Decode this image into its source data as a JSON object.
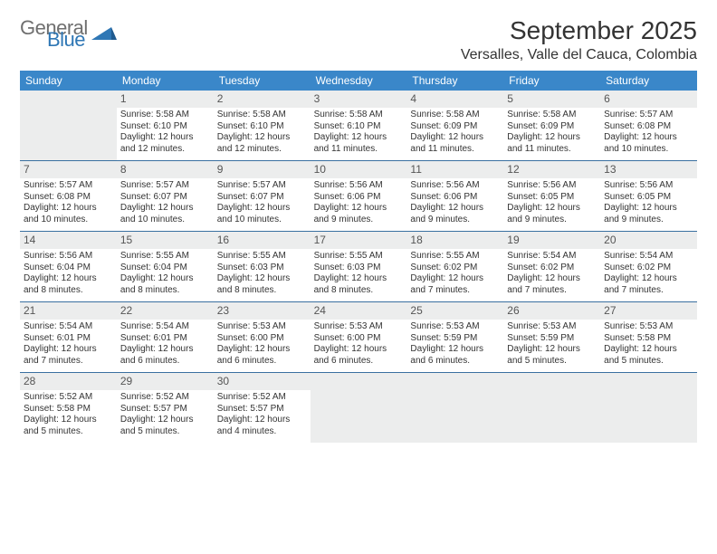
{
  "logo": {
    "word1": "General",
    "word2": "Blue",
    "word1_color": "#6f6f6f",
    "word2_color": "#2f77b5",
    "triangle_color": "#2f77b5"
  },
  "title": "September 2025",
  "location": "Versalles, Valle del Cauca, Colombia",
  "colors": {
    "header_bg": "#3a87c9",
    "header_text": "#ffffff",
    "daynum_bg": "#eceded",
    "week_divider": "#3a70a0",
    "text": "#333333"
  },
  "day_headers": [
    "Sunday",
    "Monday",
    "Tuesday",
    "Wednesday",
    "Thursday",
    "Friday",
    "Saturday"
  ],
  "weeks": [
    [
      {
        "day": "",
        "sunrise": "",
        "sunset": "",
        "daylight1": "",
        "daylight2": ""
      },
      {
        "day": "1",
        "sunrise": "Sunrise: 5:58 AM",
        "sunset": "Sunset: 6:10 PM",
        "daylight1": "Daylight: 12 hours",
        "daylight2": "and 12 minutes."
      },
      {
        "day": "2",
        "sunrise": "Sunrise: 5:58 AM",
        "sunset": "Sunset: 6:10 PM",
        "daylight1": "Daylight: 12 hours",
        "daylight2": "and 12 minutes."
      },
      {
        "day": "3",
        "sunrise": "Sunrise: 5:58 AM",
        "sunset": "Sunset: 6:10 PM",
        "daylight1": "Daylight: 12 hours",
        "daylight2": "and 11 minutes."
      },
      {
        "day": "4",
        "sunrise": "Sunrise: 5:58 AM",
        "sunset": "Sunset: 6:09 PM",
        "daylight1": "Daylight: 12 hours",
        "daylight2": "and 11 minutes."
      },
      {
        "day": "5",
        "sunrise": "Sunrise: 5:58 AM",
        "sunset": "Sunset: 6:09 PM",
        "daylight1": "Daylight: 12 hours",
        "daylight2": "and 11 minutes."
      },
      {
        "day": "6",
        "sunrise": "Sunrise: 5:57 AM",
        "sunset": "Sunset: 6:08 PM",
        "daylight1": "Daylight: 12 hours",
        "daylight2": "and 10 minutes."
      }
    ],
    [
      {
        "day": "7",
        "sunrise": "Sunrise: 5:57 AM",
        "sunset": "Sunset: 6:08 PM",
        "daylight1": "Daylight: 12 hours",
        "daylight2": "and 10 minutes."
      },
      {
        "day": "8",
        "sunrise": "Sunrise: 5:57 AM",
        "sunset": "Sunset: 6:07 PM",
        "daylight1": "Daylight: 12 hours",
        "daylight2": "and 10 minutes."
      },
      {
        "day": "9",
        "sunrise": "Sunrise: 5:57 AM",
        "sunset": "Sunset: 6:07 PM",
        "daylight1": "Daylight: 12 hours",
        "daylight2": "and 10 minutes."
      },
      {
        "day": "10",
        "sunrise": "Sunrise: 5:56 AM",
        "sunset": "Sunset: 6:06 PM",
        "daylight1": "Daylight: 12 hours",
        "daylight2": "and 9 minutes."
      },
      {
        "day": "11",
        "sunrise": "Sunrise: 5:56 AM",
        "sunset": "Sunset: 6:06 PM",
        "daylight1": "Daylight: 12 hours",
        "daylight2": "and 9 minutes."
      },
      {
        "day": "12",
        "sunrise": "Sunrise: 5:56 AM",
        "sunset": "Sunset: 6:05 PM",
        "daylight1": "Daylight: 12 hours",
        "daylight2": "and 9 minutes."
      },
      {
        "day": "13",
        "sunrise": "Sunrise: 5:56 AM",
        "sunset": "Sunset: 6:05 PM",
        "daylight1": "Daylight: 12 hours",
        "daylight2": "and 9 minutes."
      }
    ],
    [
      {
        "day": "14",
        "sunrise": "Sunrise: 5:56 AM",
        "sunset": "Sunset: 6:04 PM",
        "daylight1": "Daylight: 12 hours",
        "daylight2": "and 8 minutes."
      },
      {
        "day": "15",
        "sunrise": "Sunrise: 5:55 AM",
        "sunset": "Sunset: 6:04 PM",
        "daylight1": "Daylight: 12 hours",
        "daylight2": "and 8 minutes."
      },
      {
        "day": "16",
        "sunrise": "Sunrise: 5:55 AM",
        "sunset": "Sunset: 6:03 PM",
        "daylight1": "Daylight: 12 hours",
        "daylight2": "and 8 minutes."
      },
      {
        "day": "17",
        "sunrise": "Sunrise: 5:55 AM",
        "sunset": "Sunset: 6:03 PM",
        "daylight1": "Daylight: 12 hours",
        "daylight2": "and 8 minutes."
      },
      {
        "day": "18",
        "sunrise": "Sunrise: 5:55 AM",
        "sunset": "Sunset: 6:02 PM",
        "daylight1": "Daylight: 12 hours",
        "daylight2": "and 7 minutes."
      },
      {
        "day": "19",
        "sunrise": "Sunrise: 5:54 AM",
        "sunset": "Sunset: 6:02 PM",
        "daylight1": "Daylight: 12 hours",
        "daylight2": "and 7 minutes."
      },
      {
        "day": "20",
        "sunrise": "Sunrise: 5:54 AM",
        "sunset": "Sunset: 6:02 PM",
        "daylight1": "Daylight: 12 hours",
        "daylight2": "and 7 minutes."
      }
    ],
    [
      {
        "day": "21",
        "sunrise": "Sunrise: 5:54 AM",
        "sunset": "Sunset: 6:01 PM",
        "daylight1": "Daylight: 12 hours",
        "daylight2": "and 7 minutes."
      },
      {
        "day": "22",
        "sunrise": "Sunrise: 5:54 AM",
        "sunset": "Sunset: 6:01 PM",
        "daylight1": "Daylight: 12 hours",
        "daylight2": "and 6 minutes."
      },
      {
        "day": "23",
        "sunrise": "Sunrise: 5:53 AM",
        "sunset": "Sunset: 6:00 PM",
        "daylight1": "Daylight: 12 hours",
        "daylight2": "and 6 minutes."
      },
      {
        "day": "24",
        "sunrise": "Sunrise: 5:53 AM",
        "sunset": "Sunset: 6:00 PM",
        "daylight1": "Daylight: 12 hours",
        "daylight2": "and 6 minutes."
      },
      {
        "day": "25",
        "sunrise": "Sunrise: 5:53 AM",
        "sunset": "Sunset: 5:59 PM",
        "daylight1": "Daylight: 12 hours",
        "daylight2": "and 6 minutes."
      },
      {
        "day": "26",
        "sunrise": "Sunrise: 5:53 AM",
        "sunset": "Sunset: 5:59 PM",
        "daylight1": "Daylight: 12 hours",
        "daylight2": "and 5 minutes."
      },
      {
        "day": "27",
        "sunrise": "Sunrise: 5:53 AM",
        "sunset": "Sunset: 5:58 PM",
        "daylight1": "Daylight: 12 hours",
        "daylight2": "and 5 minutes."
      }
    ],
    [
      {
        "day": "28",
        "sunrise": "Sunrise: 5:52 AM",
        "sunset": "Sunset: 5:58 PM",
        "daylight1": "Daylight: 12 hours",
        "daylight2": "and 5 minutes."
      },
      {
        "day": "29",
        "sunrise": "Sunrise: 5:52 AM",
        "sunset": "Sunset: 5:57 PM",
        "daylight1": "Daylight: 12 hours",
        "daylight2": "and 5 minutes."
      },
      {
        "day": "30",
        "sunrise": "Sunrise: 5:52 AM",
        "sunset": "Sunset: 5:57 PM",
        "daylight1": "Daylight: 12 hours",
        "daylight2": "and 4 minutes."
      },
      {
        "day": "",
        "sunrise": "",
        "sunset": "",
        "daylight1": "",
        "daylight2": ""
      },
      {
        "day": "",
        "sunrise": "",
        "sunset": "",
        "daylight1": "",
        "daylight2": ""
      },
      {
        "day": "",
        "sunrise": "",
        "sunset": "",
        "daylight1": "",
        "daylight2": ""
      },
      {
        "day": "",
        "sunrise": "",
        "sunset": "",
        "daylight1": "",
        "daylight2": ""
      }
    ]
  ]
}
